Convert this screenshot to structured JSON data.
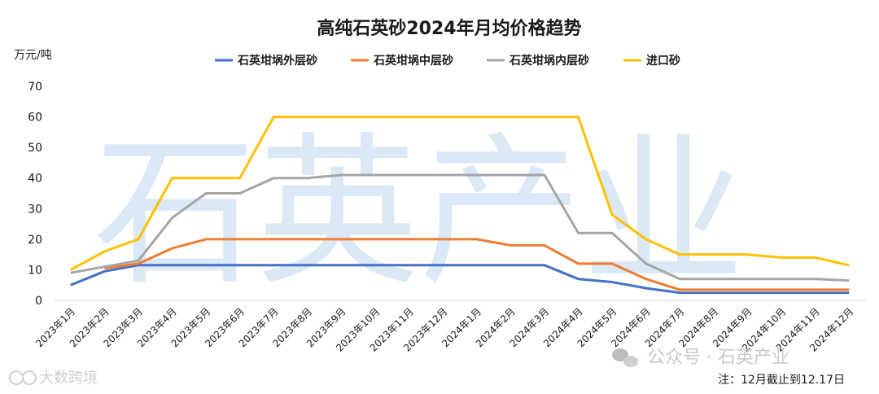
{
  "chart_data": {
    "type": "line",
    "title": "高纯石英砂2024年月均价格趋势",
    "ylabel": "万元/吨",
    "xlabel": "",
    "ylim": [
      0,
      70
    ],
    "yticks": [
      0,
      10,
      20,
      30,
      40,
      50,
      60,
      70
    ],
    "grid": false,
    "legend_position": "top",
    "categories": [
      "2023年1月",
      "2023年2月",
      "2023年3月",
      "2023年4月",
      "2023年5月",
      "2023年6月",
      "2023年7月",
      "2023年8月",
      "2023年9月",
      "2023年10月",
      "2023年11月",
      "2023年12月",
      "2024年1月",
      "2024年2月",
      "2024年3月",
      "2024年4月",
      "2024年5月",
      "2024年6月",
      "2024年7月",
      "2024年8月",
      "2024年9月",
      "2024年10月",
      "2024年11月",
      "2024年12月"
    ],
    "series": [
      {
        "name": "石英坩埚外层砂",
        "color": "#4472c4",
        "values": [
          5,
          9.5,
          11.5,
          11.5,
          11.5,
          11.5,
          11.5,
          11.5,
          11.5,
          11.5,
          11.5,
          11.5,
          11.5,
          11.5,
          11.5,
          7,
          6,
          4,
          2.5,
          2.5,
          2.5,
          2.5,
          2.5,
          2.5
        ]
      },
      {
        "name": "石英坩埚中层砂",
        "color": "#ed7d31",
        "values": [
          null,
          10.5,
          12,
          17,
          20,
          20,
          20,
          20,
          20,
          20,
          20,
          20,
          20,
          18,
          18,
          12,
          12,
          7,
          3.5,
          3.5,
          3.5,
          3.5,
          3.5,
          3.5
        ]
      },
      {
        "name": "石英坩埚内层砂",
        "color": "#a5a5a5",
        "values": [
          9,
          11,
          13,
          27,
          35,
          35,
          40,
          40,
          41,
          41,
          41,
          41,
          41,
          41,
          41,
          22,
          22,
          12,
          7,
          7,
          7,
          7,
          7,
          6.5
        ]
      },
      {
        "name": "进口砂",
        "color": "#ffc000",
        "values": [
          10,
          16,
          20,
          40,
          40,
          40,
          60,
          60,
          60,
          60,
          60,
          60,
          60,
          60,
          60,
          60,
          28,
          20,
          15,
          15,
          15,
          14,
          14,
          11.5
        ]
      }
    ],
    "annotations": [
      "注：12月截止到12.17日"
    ]
  },
  "watermark": {
    "main": "石英产业",
    "account": "公众号 · 石英产业",
    "copyright": "大数跨境"
  }
}
